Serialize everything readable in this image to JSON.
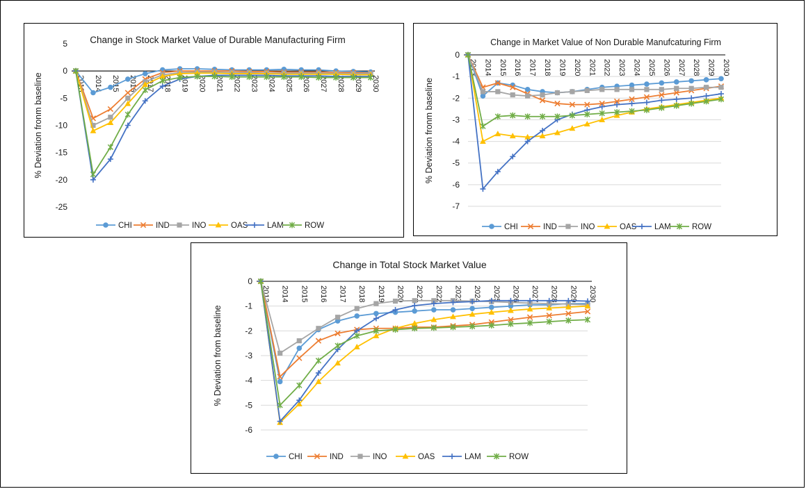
{
  "chart_data": [
    {
      "type": "line",
      "title": "Change in Stock Market Value of Durable Manufacturing Firm",
      "ylabel": "% Deviation fronm baseline",
      "ylim": [
        -25,
        5
      ],
      "yticks": [
        5,
        0,
        -5,
        -10,
        -15,
        -20,
        -25
      ],
      "categories": [
        "2013",
        "2014",
        "2015",
        "2016",
        "2017",
        "2018",
        "2019",
        "2020",
        "2021",
        "2022",
        "2023",
        "2024",
        "2025",
        "2026",
        "2027",
        "2028",
        "2029",
        "2030"
      ],
      "legend_position": "bottom",
      "gridlines": false,
      "series": [
        {
          "name": "CHI",
          "color": "#5b9bd5",
          "marker": "circle",
          "values": [
            0,
            -4,
            -3,
            -1.5,
            -0.5,
            0.2,
            0.4,
            0.4,
            0.3,
            0.2,
            0.2,
            0.2,
            0.3,
            0.2,
            0.2,
            0,
            -0.1,
            -0.2
          ]
        },
        {
          "name": "IND",
          "color": "#ed7d31",
          "marker": "x",
          "values": [
            0,
            -8.7,
            -7,
            -4,
            -1.5,
            -0.3,
            0,
            0,
            0,
            0,
            -0.1,
            -0.1,
            -0.2,
            -0.2,
            -0.2,
            -0.3,
            -0.3,
            -0.4
          ]
        },
        {
          "name": "INO",
          "color": "#a5a5a5",
          "marker": "square",
          "values": [
            0,
            -10,
            -8.5,
            -5,
            -2,
            -0.7,
            -0.3,
            -0.2,
            -0.2,
            -0.3,
            -0.3,
            -0.4,
            -0.4,
            -0.4,
            -0.4,
            -0.5,
            -0.5,
            -0.5
          ]
        },
        {
          "name": "OAS",
          "color": "#ffc000",
          "marker": "triangle",
          "values": [
            0,
            -11,
            -9.5,
            -6,
            -2.5,
            -1,
            -0.5,
            -0.4,
            -0.4,
            -0.5,
            -0.5,
            -0.5,
            -0.6,
            -0.6,
            -0.6,
            -0.6,
            -0.7,
            -0.7
          ]
        },
        {
          "name": "LAM",
          "color": "#4472c4",
          "marker": "plus",
          "values": [
            0,
            -20,
            -16.2,
            -10,
            -5.5,
            -2.8,
            -1.5,
            -1,
            -0.8,
            -0.8,
            -0.8,
            -0.8,
            -0.9,
            -0.9,
            -0.9,
            -1,
            -1,
            -1
          ]
        },
        {
          "name": "ROW",
          "color": "#70ad47",
          "marker": "star",
          "values": [
            0,
            -19,
            -14,
            -8,
            -3.5,
            -1.8,
            -1.2,
            -1,
            -1,
            -1.1,
            -1.1,
            -1.1,
            -1.1,
            -1.1,
            -1.2,
            -1.2,
            -1.2,
            -1.2
          ]
        }
      ]
    },
    {
      "type": "line",
      "title": "Change in Market Value of Non Durable Manufcaturing Firm",
      "ylabel": "% Deviation fronm baseline",
      "ylim": [
        -7,
        0
      ],
      "yticks": [
        0,
        -1,
        -2,
        -3,
        -4,
        -5,
        -6,
        -7
      ],
      "categories": [
        "2013",
        "2014",
        "2015",
        "2016",
        "2017",
        "2018",
        "2019",
        "2020",
        "2021",
        "2022",
        "2023",
        "2024",
        "2025",
        "2026",
        "2027",
        "2028",
        "2029",
        "2030"
      ],
      "legend_position": "bottom",
      "gridlines": true,
      "series": [
        {
          "name": "CHI",
          "color": "#5b9bd5",
          "marker": "circle",
          "values": [
            0,
            -1.9,
            -1.3,
            -1.4,
            -1.6,
            -1.7,
            -1.75,
            -1.7,
            -1.6,
            -1.5,
            -1.45,
            -1.4,
            -1.35,
            -1.3,
            -1.25,
            -1.2,
            -1.15,
            -1.1
          ]
        },
        {
          "name": "IND",
          "color": "#ed7d31",
          "marker": "x",
          "values": [
            0,
            -1.5,
            -1.3,
            -1.5,
            -1.8,
            -2.1,
            -2.25,
            -2.3,
            -2.3,
            -2.25,
            -2.15,
            -2.05,
            -1.95,
            -1.85,
            -1.75,
            -1.65,
            -1.55,
            -1.45
          ]
        },
        {
          "name": "INO",
          "color": "#a5a5a5",
          "marker": "square",
          "values": [
            0,
            -1.7,
            -1.7,
            -1.85,
            -1.9,
            -1.85,
            -1.75,
            -1.7,
            -1.65,
            -1.6,
            -1.6,
            -1.6,
            -1.6,
            -1.6,
            -1.55,
            -1.55,
            -1.5,
            -1.5
          ]
        },
        {
          "name": "OAS",
          "color": "#ffc000",
          "marker": "triangle",
          "values": [
            0,
            -4,
            -3.65,
            -3.75,
            -3.8,
            -3.75,
            -3.6,
            -3.4,
            -3.2,
            -3,
            -2.8,
            -2.65,
            -2.5,
            -2.4,
            -2.3,
            -2.2,
            -2.1,
            -2
          ]
        },
        {
          "name": "LAM",
          "color": "#4472c4",
          "marker": "plus",
          "values": [
            0,
            -6.2,
            -5.4,
            -4.7,
            -4,
            -3.5,
            -3,
            -2.75,
            -2.55,
            -2.4,
            -2.3,
            -2.25,
            -2.2,
            -2.1,
            -2.05,
            -2,
            -1.9,
            -1.8
          ]
        },
        {
          "name": "ROW",
          "color": "#70ad47",
          "marker": "star",
          "values": [
            0,
            -3.3,
            -2.85,
            -2.8,
            -2.85,
            -2.85,
            -2.85,
            -2.8,
            -2.75,
            -2.7,
            -2.65,
            -2.6,
            -2.55,
            -2.45,
            -2.35,
            -2.25,
            -2.15,
            -2.05
          ]
        }
      ]
    },
    {
      "type": "line",
      "title": "Change in Total Stock Market Value",
      "ylabel": "% Deviation from baseline",
      "ylim": [
        -6,
        0
      ],
      "yticks": [
        0,
        -1,
        -2,
        -3,
        -4,
        -5,
        -6
      ],
      "categories": [
        "2013",
        "2014",
        "2015",
        "2016",
        "2017",
        "2018",
        "2019",
        "2020",
        "2021",
        "2022",
        "2023",
        "2024",
        "2025",
        "2026",
        "2027",
        "2028",
        "2029",
        "2030"
      ],
      "legend_position": "bottom",
      "gridlines": true,
      "series": [
        {
          "name": "CHI",
          "color": "#5b9bd5",
          "marker": "circle",
          "values": [
            0,
            -4.05,
            -2.7,
            -1.95,
            -1.6,
            -1.4,
            -1.3,
            -1.25,
            -1.2,
            -1.15,
            -1.15,
            -1.1,
            -1.05,
            -1,
            -0.95,
            -0.95,
            -0.9,
            -0.9
          ]
        },
        {
          "name": "IND",
          "color": "#ed7d31",
          "marker": "x",
          "values": [
            0,
            -3.85,
            -3.1,
            -2.4,
            -2.1,
            -1.95,
            -1.9,
            -1.9,
            -1.85,
            -1.85,
            -1.8,
            -1.75,
            -1.65,
            -1.55,
            -1.45,
            -1.38,
            -1.3,
            -1.22
          ]
        },
        {
          "name": "INO",
          "color": "#a5a5a5",
          "marker": "square",
          "values": [
            0,
            -2.9,
            -2.4,
            -1.9,
            -1.45,
            -1.1,
            -0.9,
            -0.8,
            -0.78,
            -0.78,
            -0.78,
            -0.8,
            -0.82,
            -0.85,
            -0.88,
            -0.9,
            -0.92,
            -0.95
          ]
        },
        {
          "name": "OAS",
          "color": "#ffc000",
          "marker": "triangle",
          "values": [
            0,
            -5.7,
            -4.95,
            -4.05,
            -3.3,
            -2.65,
            -2.2,
            -1.9,
            -1.7,
            -1.55,
            -1.43,
            -1.33,
            -1.25,
            -1.18,
            -1.12,
            -1.08,
            -1.04,
            -1
          ]
        },
        {
          "name": "LAM",
          "color": "#4472c4",
          "marker": "plus",
          "values": [
            0,
            -5.65,
            -4.8,
            -3.7,
            -2.75,
            -2,
            -1.5,
            -1.15,
            -0.98,
            -0.9,
            -0.85,
            -0.82,
            -0.78,
            -0.78,
            -0.78,
            -0.78,
            -0.78,
            -0.8
          ]
        },
        {
          "name": "ROW",
          "color": "#70ad47",
          "marker": "star",
          "values": [
            0,
            -5,
            -4.2,
            -3.2,
            -2.6,
            -2.2,
            -2,
            -1.95,
            -1.9,
            -1.88,
            -1.85,
            -1.82,
            -1.78,
            -1.72,
            -1.68,
            -1.63,
            -1.58,
            -1.55
          ]
        }
      ]
    }
  ]
}
